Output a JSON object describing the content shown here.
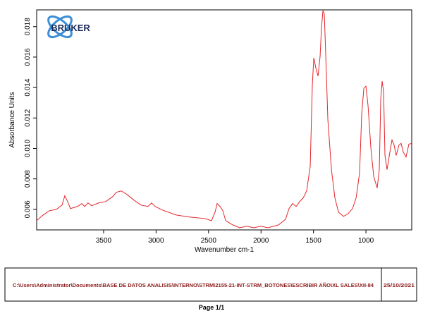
{
  "chart_data": {
    "type": "line",
    "x_label": "Wavenumber cm-1",
    "y_label": "Absorbance Units",
    "color": "#e3262b",
    "xlim": [
      4138,
      564
    ],
    "ylim": [
      0.00465,
      0.0191
    ],
    "xticks": [
      3500,
      3000,
      2500,
      2000,
      1500,
      1000
    ],
    "yticks": [
      0.006,
      0.008,
      {
        "value": 0.01,
        "label": "0.010"
      },
      0.012,
      0.014,
      0.016,
      0.018
    ],
    "x": [
      4138,
      4085,
      4017,
      3950,
      3896,
      3870,
      3843,
      3816,
      3749,
      3708,
      3681,
      3648,
      3614,
      3547,
      3480,
      3413,
      3379,
      3332,
      3278,
      3211,
      3144,
      3077,
      3043,
      3009,
      2942,
      2808,
      2673,
      2539,
      2472,
      2438,
      2418,
      2391,
      2364,
      2337,
      2270,
      2203,
      2136,
      2069,
      2002,
      1934,
      1833,
      1766,
      1733,
      1699,
      1665,
      1632,
      1598,
      1565,
      1531,
      1511,
      1497,
      1477,
      1457,
      1437,
      1424,
      1410,
      1397,
      1383,
      1363,
      1329,
      1296,
      1262,
      1215,
      1175,
      1128,
      1094,
      1061,
      1040,
      1020,
      1000,
      980,
      953,
      926,
      893,
      873,
      859,
      846,
      832,
      819,
      799,
      772,
      752,
      732,
      712,
      685,
      665,
      645,
      618,
      591,
      564
    ],
    "values": [
      0.00526,
      0.00558,
      0.00591,
      0.006,
      0.00628,
      0.00689,
      0.00651,
      0.00605,
      0.00619,
      0.00638,
      0.00619,
      0.00642,
      0.00624,
      0.00642,
      0.00651,
      0.00684,
      0.00712,
      0.00721,
      0.00698,
      0.00661,
      0.00628,
      0.00619,
      0.00642,
      0.00619,
      0.00596,
      0.00563,
      0.00549,
      0.0054,
      0.00526,
      0.00582,
      0.00638,
      0.00619,
      0.00591,
      0.00526,
      0.00498,
      0.00479,
      0.00489,
      0.00479,
      0.00489,
      0.00479,
      0.00498,
      0.00535,
      0.00605,
      0.00638,
      0.00619,
      0.00651,
      0.00675,
      0.00721,
      0.00884,
      0.01419,
      0.01595,
      0.01526,
      0.01475,
      0.01605,
      0.01791,
      0.01905,
      0.01884,
      0.01605,
      0.01186,
      0.00861,
      0.00675,
      0.00582,
      0.00554,
      0.00568,
      0.00605,
      0.00675,
      0.00837,
      0.01233,
      0.01395,
      0.01409,
      0.01279,
      0.01,
      0.00814,
      0.0074,
      0.00861,
      0.01326,
      0.01442,
      0.01372,
      0.00954,
      0.00861,
      0.00977,
      0.01056,
      0.01023,
      0.00954,
      0.01023,
      0.01033,
      0.00977,
      0.00944,
      0.01028,
      0.01033
    ]
  },
  "logo": "BRUKER",
  "footer": {
    "file_path": "C:\\Users\\Administrator\\Documents\\BASE DE DATOS ANALISIS\\INTERNO\\STRM\\2155-21-INT-STRM_BOTONES\\ESCRIBIR AÑO\\XL SALES\\XII-84",
    "date": "25/10/2021"
  },
  "page_label": "Page 1/1"
}
